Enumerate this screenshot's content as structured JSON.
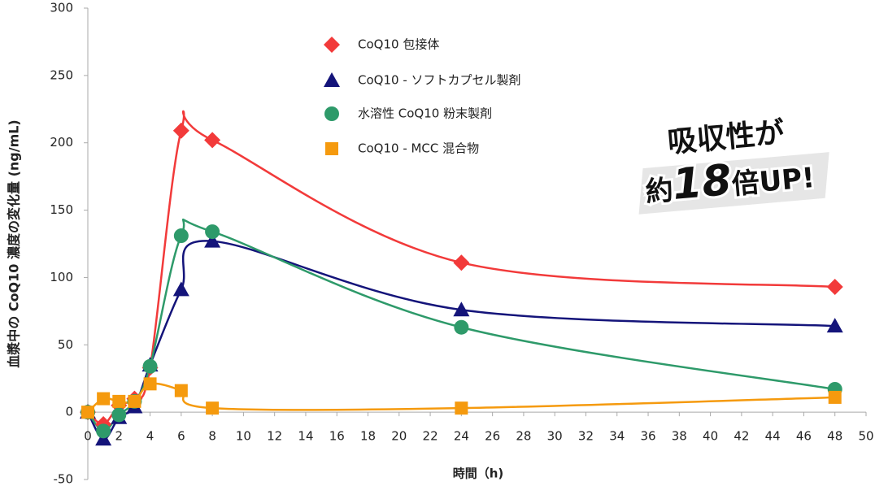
{
  "chart_data": {
    "type": "line",
    "y_label": "血漿中の CoQ10 濃度の変化量 (ng/mL)",
    "x_label": "時間（h)",
    "annotation": {
      "line1": "吸収性が",
      "prefix": "約",
      "number": "18",
      "suffix": "倍UP!"
    },
    "xlim": [
      0,
      50
    ],
    "xticks": [
      0,
      2,
      4,
      6,
      8,
      10,
      12,
      14,
      16,
      18,
      20,
      22,
      24,
      26,
      28,
      30,
      32,
      34,
      36,
      38,
      40,
      42,
      44,
      46,
      48,
      50
    ],
    "ylim": [
      -50,
      300
    ],
    "yticks": [
      -50,
      0,
      50,
      100,
      150,
      200,
      250,
      300
    ],
    "x": [
      0,
      1,
      2,
      3,
      4,
      6,
      8,
      24,
      48
    ],
    "series": [
      {
        "name": "CoQ10 包接体",
        "color": "#f23a3a",
        "marker": "diamond",
        "values": [
          0,
          -9,
          5,
          10,
          33,
          209,
          202,
          111,
          93
        ]
      },
      {
        "name": "CoQ10 - ソフトカプセル製剤",
        "color": "#14147a",
        "marker": "triangle",
        "values": [
          0,
          -20,
          -4,
          4,
          35,
          91,
          127,
          76,
          64
        ]
      },
      {
        "name": "水溶性 CoQ10 粉末製剤",
        "color": "#2e9a6a",
        "marker": "circle",
        "values": [
          0,
          -14,
          -2,
          8,
          34,
          131,
          134,
          63,
          17
        ]
      },
      {
        "name": "CoQ10 - MCC 混合物",
        "color": "#f59a0e",
        "marker": "square",
        "values": [
          0,
          10,
          8,
          8,
          21,
          16,
          3,
          3,
          11
        ]
      }
    ]
  }
}
